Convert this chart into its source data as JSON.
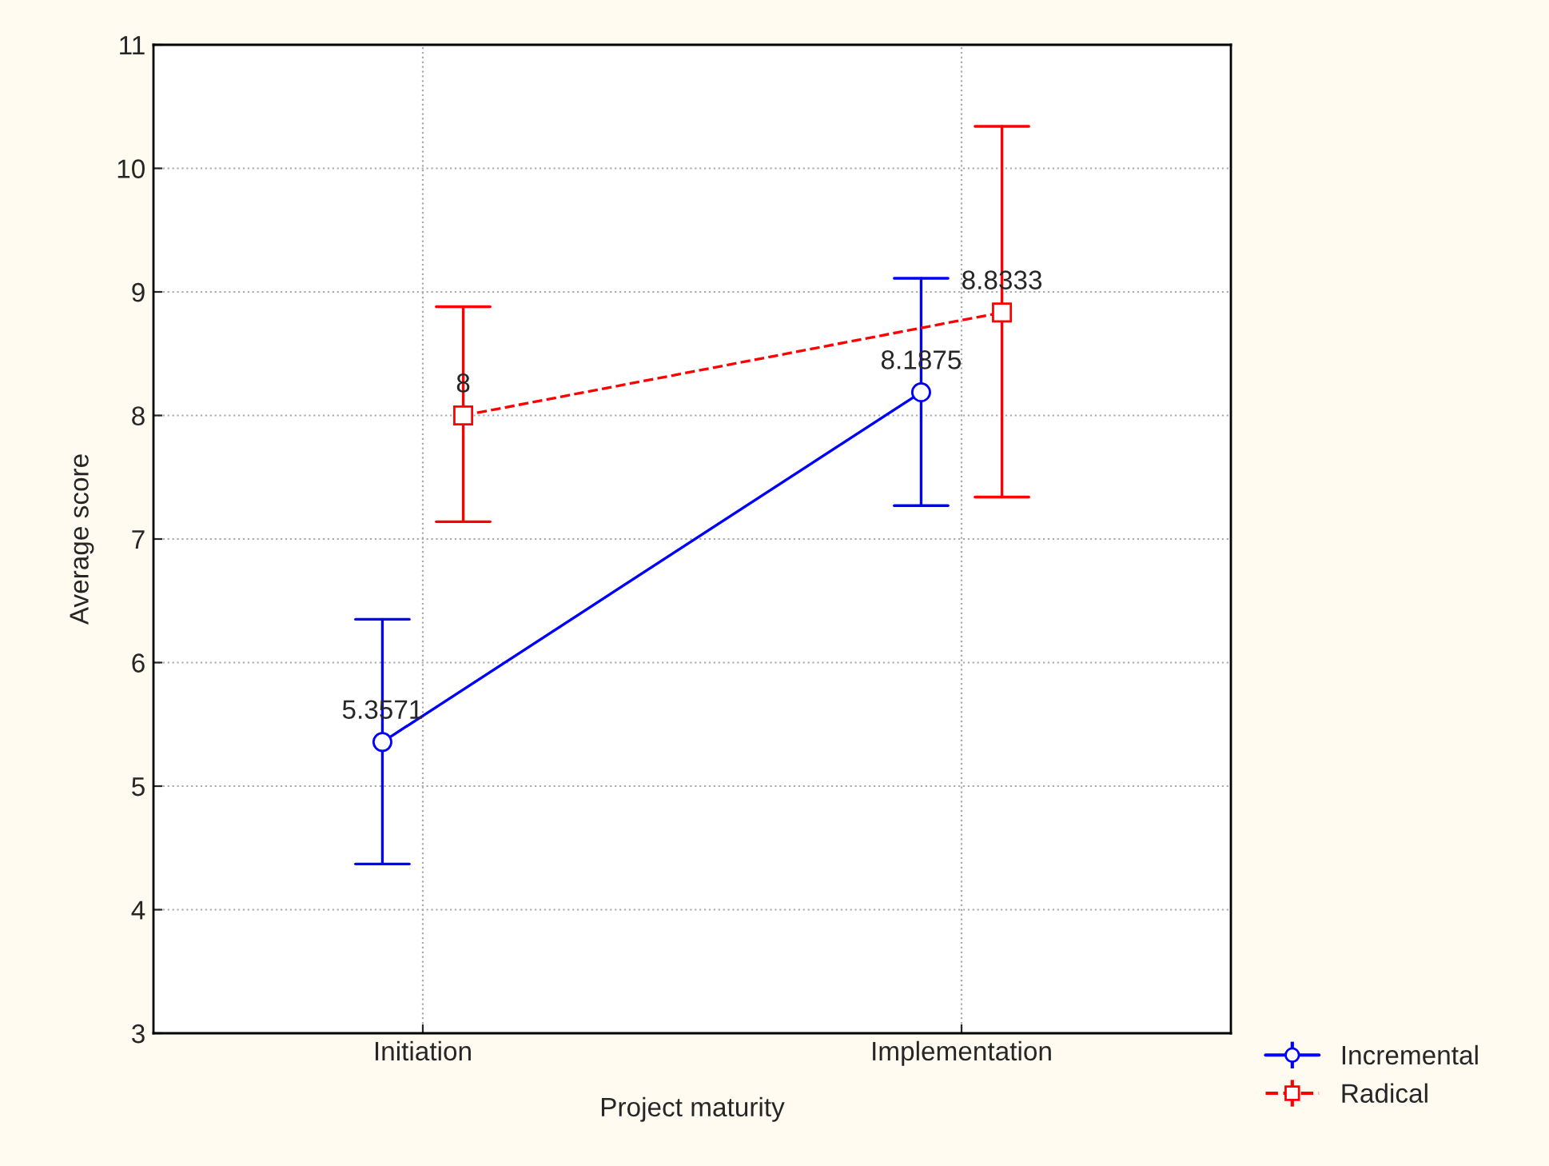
{
  "chart_data": {
    "type": "line",
    "xlabel": "Project maturity",
    "ylabel": "Average score",
    "categories": [
      "Initiation",
      "Implementation"
    ],
    "series": [
      {
        "name": "Incremental",
        "color": "#0000ff",
        "values": [
          5.3571,
          8.1875
        ],
        "errors": [
          [
            4.37,
            6.35
          ],
          [
            7.27,
            9.11
          ]
        ],
        "marker": "circle",
        "line_style": "solid"
      },
      {
        "name": "Radical",
        "color": "#ff0000",
        "values": [
          8,
          8.8333
        ],
        "errors": [
          [
            7.14,
            8.88
          ],
          [
            7.34,
            10.34
          ]
        ],
        "marker": "square",
        "line_style": "dashed"
      }
    ],
    "ylim": [
      3,
      11
    ],
    "yticks": [
      3,
      4,
      5,
      6,
      7,
      8,
      9,
      10,
      11
    ],
    "grid": true,
    "legend": "bottom right",
    "data_labels": true
  }
}
